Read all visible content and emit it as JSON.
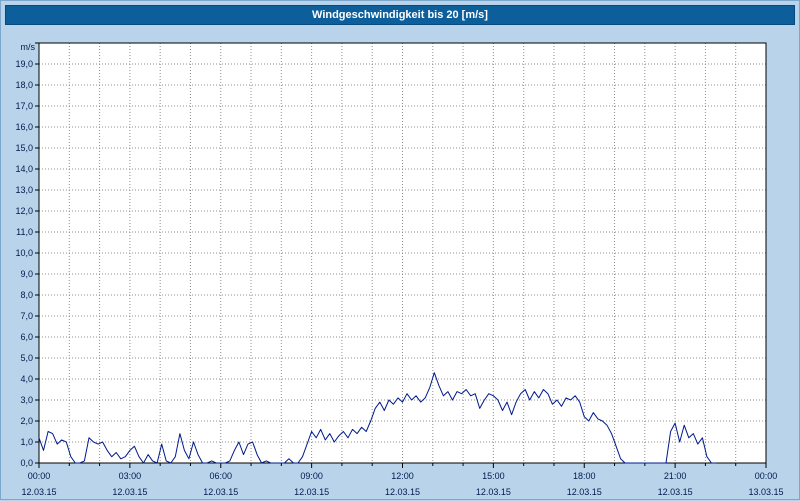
{
  "title": "Windgeschwindigkeit bis 20 [m/s]",
  "colors": {
    "page_background": "#b9d3ea",
    "titlebar_background": "#0d5f9b",
    "titlebar_text": "#ffffff",
    "plot_background": "#ffffff",
    "plot_border": "#000000",
    "grid": "#8f8f8f",
    "axis_text": "#001a4d",
    "line": "#001a8c"
  },
  "chart_data": {
    "type": "line",
    "title": "Windgeschwindigkeit bis 20 [m/s]",
    "xlabel": "",
    "ylabel": "m/s",
    "xlim": [
      0,
      24
    ],
    "ylim": [
      0,
      20
    ],
    "grid": {
      "style": "dotted",
      "x_every_hours": 1,
      "y_every": 1
    },
    "legend": "none",
    "y_tick_labels": [
      "0,0",
      "1,0",
      "2,0",
      "3,0",
      "4,0",
      "5,0",
      "6,0",
      "7,0",
      "8,0",
      "9,0",
      "10,0",
      "11,0",
      "12,0",
      "13,0",
      "14,0",
      "15,0",
      "16,0",
      "17,0",
      "18,0",
      "19,0"
    ],
    "x_ticks": [
      {
        "hour": 0,
        "time": "00:00",
        "date": "12.03.15"
      },
      {
        "hour": 3,
        "time": "03:00",
        "date": "12.03.15"
      },
      {
        "hour": 6,
        "time": "06:00",
        "date": "12.03.15"
      },
      {
        "hour": 9,
        "time": "09:00",
        "date": "12.03.15"
      },
      {
        "hour": 12,
        "time": "12:00",
        "date": "12.03.15"
      },
      {
        "hour": 15,
        "time": "15:00",
        "date": "12.03.15"
      },
      {
        "hour": 18,
        "time": "18:00",
        "date": "12.03.15"
      },
      {
        "hour": 21,
        "time": "21:00",
        "date": "12.03.15"
      },
      {
        "hour": 24,
        "time": "00:00",
        "date": "13.03.15"
      }
    ],
    "series": [
      {
        "name": "Windgeschwindigkeit",
        "color": "#001a8c",
        "points": [
          [
            0.0,
            1.2
          ],
          [
            0.15,
            0.6
          ],
          [
            0.3,
            1.5
          ],
          [
            0.45,
            1.4
          ],
          [
            0.6,
            0.9
          ],
          [
            0.75,
            1.1
          ],
          [
            0.9,
            1.0
          ],
          [
            1.05,
            0.3
          ],
          [
            1.2,
            0.0
          ],
          [
            1.35,
            0.0
          ],
          [
            1.5,
            0.1
          ],
          [
            1.65,
            1.2
          ],
          [
            1.8,
            1.0
          ],
          [
            1.95,
            0.9
          ],
          [
            2.1,
            1.0
          ],
          [
            2.25,
            0.6
          ],
          [
            2.4,
            0.3
          ],
          [
            2.55,
            0.5
          ],
          [
            2.7,
            0.2
          ],
          [
            2.85,
            0.3
          ],
          [
            3.0,
            0.6
          ],
          [
            3.15,
            0.8
          ],
          [
            3.3,
            0.3
          ],
          [
            3.45,
            0.0
          ],
          [
            3.6,
            0.4
          ],
          [
            3.75,
            0.1
          ],
          [
            3.9,
            0.0
          ],
          [
            4.05,
            0.9
          ],
          [
            4.2,
            0.1
          ],
          [
            4.35,
            0.0
          ],
          [
            4.5,
            0.3
          ],
          [
            4.65,
            1.4
          ],
          [
            4.8,
            0.6
          ],
          [
            4.95,
            0.2
          ],
          [
            5.1,
            1.0
          ],
          [
            5.25,
            0.4
          ],
          [
            5.4,
            0.0
          ],
          [
            5.55,
            0.0
          ],
          [
            5.7,
            0.1
          ],
          [
            5.85,
            0.0
          ],
          [
            6.0,
            0.0
          ],
          [
            6.15,
            0.0
          ],
          [
            6.3,
            0.1
          ],
          [
            6.45,
            0.6
          ],
          [
            6.6,
            1.0
          ],
          [
            6.75,
            0.4
          ],
          [
            6.9,
            0.9
          ],
          [
            7.05,
            1.0
          ],
          [
            7.2,
            0.4
          ],
          [
            7.35,
            0.0
          ],
          [
            7.5,
            0.1
          ],
          [
            7.65,
            0.0
          ],
          [
            7.8,
            0.0
          ],
          [
            7.95,
            0.0
          ],
          [
            8.1,
            0.0
          ],
          [
            8.25,
            0.2
          ],
          [
            8.4,
            0.0
          ],
          [
            8.55,
            0.0
          ],
          [
            8.7,
            0.3
          ],
          [
            8.85,
            0.9
          ],
          [
            9.0,
            1.5
          ],
          [
            9.15,
            1.2
          ],
          [
            9.3,
            1.6
          ],
          [
            9.45,
            1.1
          ],
          [
            9.6,
            1.4
          ],
          [
            9.75,
            1.0
          ],
          [
            9.9,
            1.3
          ],
          [
            10.05,
            1.5
          ],
          [
            10.2,
            1.2
          ],
          [
            10.35,
            1.6
          ],
          [
            10.5,
            1.4
          ],
          [
            10.65,
            1.7
          ],
          [
            10.8,
            1.5
          ],
          [
            10.95,
            2.0
          ],
          [
            11.1,
            2.6
          ],
          [
            11.25,
            2.9
          ],
          [
            11.4,
            2.5
          ],
          [
            11.55,
            3.0
          ],
          [
            11.7,
            2.8
          ],
          [
            11.85,
            3.1
          ],
          [
            12.0,
            2.9
          ],
          [
            12.15,
            3.3
          ],
          [
            12.3,
            3.0
          ],
          [
            12.45,
            3.2
          ],
          [
            12.6,
            2.9
          ],
          [
            12.75,
            3.1
          ],
          [
            12.9,
            3.6
          ],
          [
            13.05,
            4.3
          ],
          [
            13.2,
            3.7
          ],
          [
            13.35,
            3.2
          ],
          [
            13.5,
            3.4
          ],
          [
            13.65,
            3.0
          ],
          [
            13.8,
            3.4
          ],
          [
            13.95,
            3.3
          ],
          [
            14.1,
            3.5
          ],
          [
            14.25,
            3.2
          ],
          [
            14.4,
            3.3
          ],
          [
            14.55,
            2.6
          ],
          [
            14.7,
            3.0
          ],
          [
            14.85,
            3.3
          ],
          [
            15.0,
            3.2
          ],
          [
            15.15,
            3.0
          ],
          [
            15.3,
            2.5
          ],
          [
            15.45,
            2.9
          ],
          [
            15.6,
            2.3
          ],
          [
            15.75,
            2.9
          ],
          [
            15.9,
            3.3
          ],
          [
            16.05,
            3.5
          ],
          [
            16.2,
            3.0
          ],
          [
            16.35,
            3.4
          ],
          [
            16.5,
            3.1
          ],
          [
            16.65,
            3.5
          ],
          [
            16.8,
            3.3
          ],
          [
            16.95,
            2.8
          ],
          [
            17.1,
            3.0
          ],
          [
            17.25,
            2.7
          ],
          [
            17.4,
            3.1
          ],
          [
            17.55,
            3.0
          ],
          [
            17.7,
            3.2
          ],
          [
            17.85,
            2.9
          ],
          [
            18.0,
            2.2
          ],
          [
            18.15,
            2.0
          ],
          [
            18.3,
            2.4
          ],
          [
            18.45,
            2.1
          ],
          [
            18.6,
            2.0
          ],
          [
            18.75,
            1.8
          ],
          [
            18.9,
            1.4
          ],
          [
            19.05,
            0.8
          ],
          [
            19.2,
            0.2
          ],
          [
            19.35,
            0.0
          ],
          [
            19.5,
            0.0
          ],
          [
            19.65,
            0.0
          ],
          [
            19.8,
            0.0
          ],
          [
            19.95,
            0.0
          ],
          [
            20.1,
            0.0
          ],
          [
            20.25,
            0.0
          ],
          [
            20.4,
            0.0
          ],
          [
            20.55,
            0.0
          ],
          [
            20.7,
            0.0
          ],
          [
            20.85,
            1.5
          ],
          [
            21.0,
            1.9
          ],
          [
            21.15,
            1.0
          ],
          [
            21.3,
            1.8
          ],
          [
            21.45,
            1.2
          ],
          [
            21.6,
            1.4
          ],
          [
            21.75,
            0.9
          ],
          [
            21.9,
            1.2
          ],
          [
            22.05,
            0.3
          ],
          [
            22.2,
            0.0
          ],
          [
            22.35,
            0.0
          ]
        ]
      }
    ]
  }
}
